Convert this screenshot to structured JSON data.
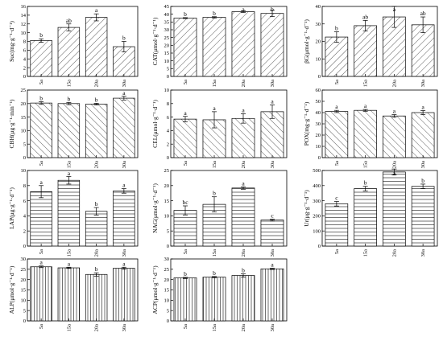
{
  "chart_data": [
    {
      "type": "bar",
      "ylabel": "Suc(mg·g⁻¹·d⁻¹)",
      "categories": [
        "5a",
        "15a",
        "20a",
        "30a"
      ],
      "values": [
        8.2,
        11.2,
        13.5,
        6.8
      ],
      "errors": [
        0.4,
        0.8,
        0.8,
        1.2
      ],
      "labels": [
        "b",
        "ab",
        "a",
        "b"
      ],
      "ylim": [
        0,
        16
      ],
      "yticks": [
        0,
        2,
        4,
        6,
        8,
        10,
        12,
        14,
        16
      ],
      "hatch": "diag-up"
    },
    {
      "type": "bar",
      "ylabel": "CAT(μmol·g⁻¹·d⁻¹)",
      "categories": [
        "5a",
        "15a",
        "20a",
        "30a"
      ],
      "values": [
        37.5,
        38.0,
        41.6,
        40.5
      ],
      "errors": [
        0.3,
        0.4,
        0.5,
        2.0
      ],
      "labels": [
        "b",
        "b",
        "a",
        "b"
      ],
      "ylim": [
        0,
        45
      ],
      "yticks": [
        0,
        5,
        10,
        15,
        20,
        25,
        30,
        35,
        40,
        45
      ],
      "hatch": "diag-up"
    },
    {
      "type": "bar",
      "ylabel": "βG(μmol·g⁻¹·d⁻¹)",
      "categories": [
        "5a",
        "15a",
        "20a",
        "30a"
      ],
      "values": [
        22.5,
        29.0,
        34.0,
        29.5
      ],
      "errors": [
        3.0,
        3.0,
        6.0,
        4.5
      ],
      "labels": [
        "b",
        "ab",
        "a",
        "ab"
      ],
      "ylim": [
        0,
        40
      ],
      "yticks": [
        0,
        10,
        20,
        30,
        40
      ],
      "hatch": "diag-up"
    },
    {
      "type": "bar",
      "ylabel": "CBH(μg·g⁻¹·min⁻¹)",
      "categories": [
        "5a",
        "15a",
        "20a",
        "30a"
      ],
      "values": [
        20.2,
        20.0,
        19.8,
        22.0
      ],
      "errors": [
        0.5,
        0.4,
        0.3,
        0.7
      ],
      "labels": [
        "b",
        "b",
        "b",
        "a"
      ],
      "ylim": [
        0,
        25
      ],
      "yticks": [
        0,
        5,
        10,
        15,
        20,
        25
      ],
      "hatch": "diag-down"
    },
    {
      "type": "bar",
      "ylabel": "CEL(μmol·g⁻¹·d⁻¹)",
      "categories": [
        "5a",
        "15a",
        "20a",
        "30a"
      ],
      "values": [
        5.7,
        5.6,
        5.8,
        6.8
      ],
      "errors": [
        0.4,
        1.2,
        0.7,
        1.0
      ],
      "labels": [
        "a",
        "a",
        "a",
        "a"
      ],
      "ylim": [
        0,
        10
      ],
      "yticks": [
        0,
        2,
        4,
        6,
        8,
        10
      ],
      "hatch": "diag-down"
    },
    {
      "type": "bar",
      "ylabel": "POX(mg·g⁻¹·d⁻¹)",
      "categories": [
        "5a",
        "15a",
        "20a",
        "30a"
      ],
      "values": [
        41.0,
        42.0,
        37.0,
        40.0
      ],
      "errors": [
        1.0,
        0.8,
        1.2,
        1.8
      ],
      "labels": [
        "a",
        "a",
        "a",
        "a"
      ],
      "ylim": [
        0,
        60
      ],
      "yticks": [
        0,
        10,
        20,
        30,
        40,
        50,
        60
      ],
      "hatch": "diag-down"
    },
    {
      "type": "bar",
      "ylabel": "LAP(μg·g⁻¹·d⁻¹)",
      "categories": [
        "5a",
        "15a",
        "20a",
        "30a"
      ],
      "values": [
        7.2,
        8.7,
        4.6,
        7.3
      ],
      "errors": [
        0.8,
        0.5,
        0.5,
        0.3
      ],
      "labels": [
        "a",
        "a",
        "b",
        "a"
      ],
      "ylim": [
        0,
        10
      ],
      "yticks": [
        0,
        2,
        4,
        6,
        8,
        10
      ],
      "hatch": "horizontal"
    },
    {
      "type": "bar",
      "ylabel": "NAG(μmol·g⁻¹·d⁻¹)",
      "categories": [
        "5a",
        "15a",
        "20a",
        "30a"
      ],
      "values": [
        11.8,
        13.8,
        19.2,
        8.6
      ],
      "errors": [
        1.5,
        2.5,
        0.4,
        0.3
      ],
      "labels": [
        "bc",
        "b",
        "a",
        "c"
      ],
      "ylim": [
        0,
        25
      ],
      "yticks": [
        0,
        5,
        10,
        15,
        20,
        25
      ],
      "hatch": "horizontal"
    },
    {
      "type": "bar",
      "ylabel": "Ur(μg·g⁻¹·d⁻¹)",
      "categories": [
        "5a",
        "15a",
        "20a",
        "30a"
      ],
      "values": [
        280,
        380,
        490,
        395
      ],
      "errors": [
        15,
        15,
        20,
        15
      ],
      "labels": [
        "c",
        "b",
        "a",
        "b"
      ],
      "ylim": [
        0,
        500
      ],
      "yticks": [
        0,
        100,
        200,
        300,
        400,
        500
      ],
      "hatch": "horizontal"
    },
    {
      "type": "bar",
      "ylabel": "ALP(μmol·g⁻¹·d⁻¹)",
      "categories": [
        "5a",
        "15a",
        "20a",
        "30a"
      ],
      "values": [
        26.2,
        25.7,
        22.5,
        25.5
      ],
      "errors": [
        0.4,
        0.3,
        0.8,
        0.5
      ],
      "labels": [
        "a",
        "a",
        "b",
        "a"
      ],
      "ylim": [
        0,
        30
      ],
      "yticks": [
        0,
        5,
        10,
        15,
        20,
        25,
        30
      ],
      "hatch": "vertical"
    },
    {
      "type": "bar",
      "ylabel": "ACP(μmol·g⁻¹·d⁻¹)",
      "categories": [
        "5a",
        "15a",
        "20a",
        "30a"
      ],
      "values": [
        20.8,
        21.2,
        22.0,
        25.2
      ],
      "errors": [
        0.3,
        0.3,
        0.8,
        0.3
      ],
      "labels": [
        "b",
        "b",
        "b",
        "a"
      ],
      "ylim": [
        0,
        30
      ],
      "yticks": [
        0,
        5,
        10,
        15,
        20,
        25,
        30
      ],
      "hatch": "vertical"
    }
  ]
}
